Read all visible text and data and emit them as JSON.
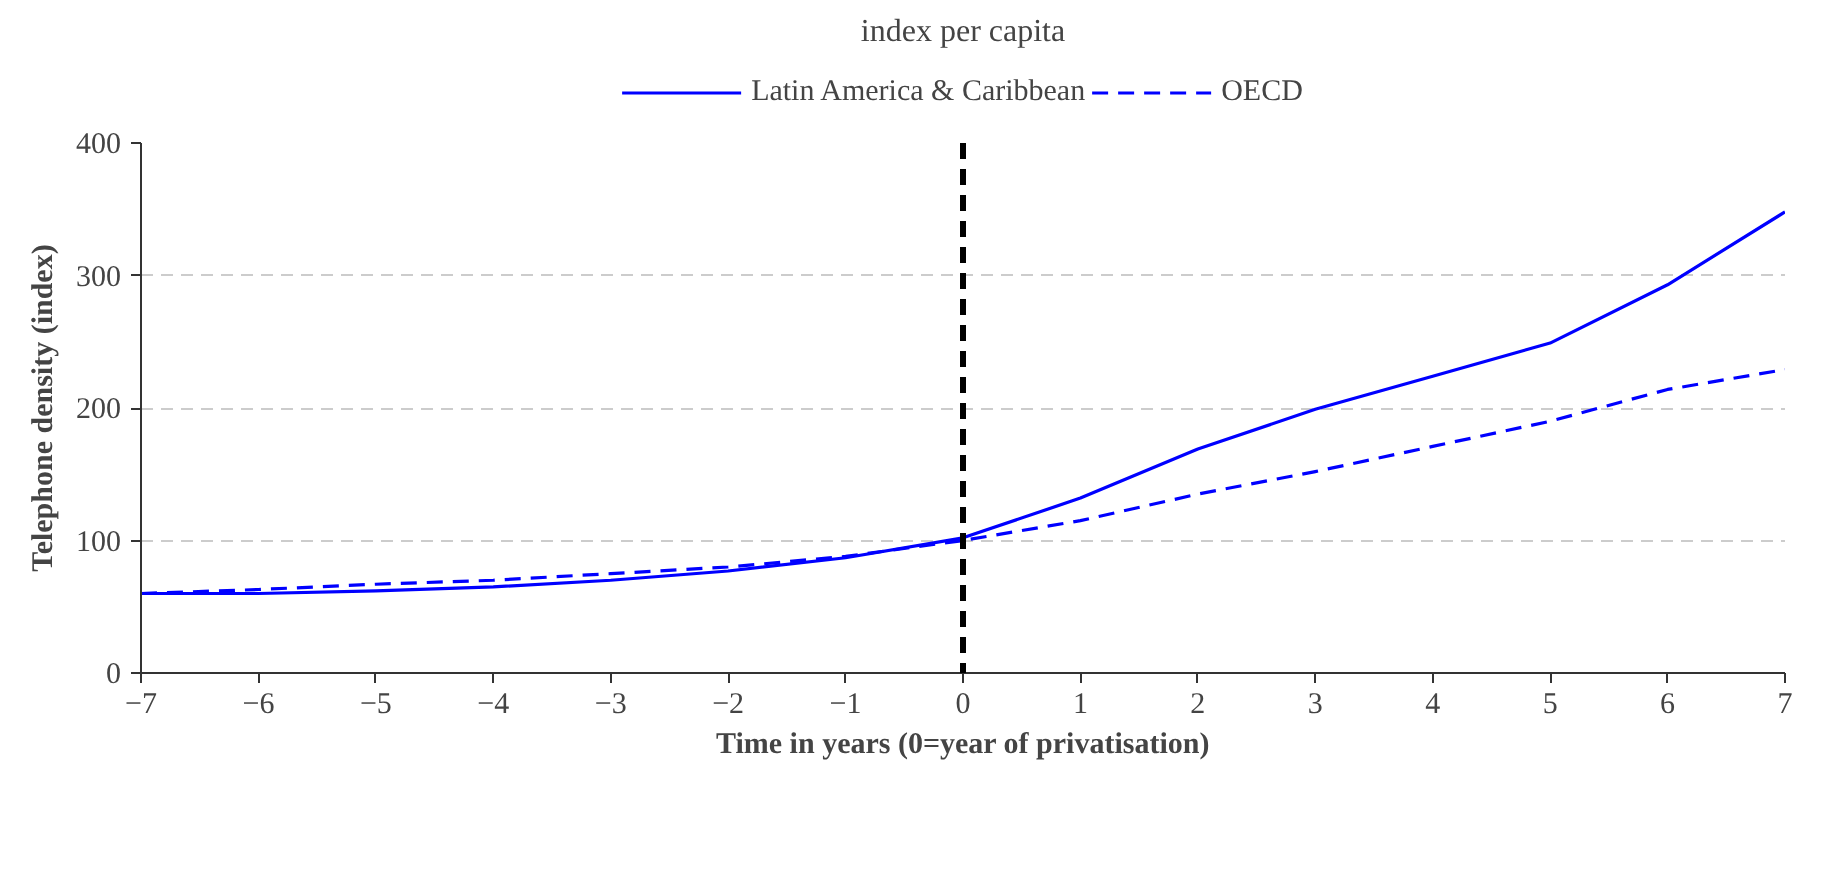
{
  "chart_data": {
    "type": "line",
    "title": "index per capita",
    "xlabel": "Time in years (0=year of privatisation)",
    "ylabel": "Telephone density (index)",
    "x": [
      -7,
      -6,
      -5,
      -4,
      -3,
      -2,
      -1,
      0,
      1,
      2,
      3,
      4,
      5,
      6,
      7
    ],
    "series": [
      {
        "name": "Latin America & Caribbean",
        "color": "#0000ff",
        "line_style": "solid",
        "values": [
          60,
          60,
          62,
          65,
          70,
          77,
          87,
          102,
          132,
          169,
          199,
          224,
          249,
          293,
          348
        ]
      },
      {
        "name": "OECD",
        "color": "#0000ff",
        "line_style": "dashed",
        "values": [
          60,
          63,
          67,
          70,
          75,
          80,
          88,
          100,
          115,
          135,
          152,
          171,
          190,
          214,
          229
        ]
      }
    ],
    "xlim": [
      -7,
      7
    ],
    "xticks": [
      -7,
      -6,
      -5,
      -4,
      -3,
      -2,
      -1,
      0,
      1,
      2,
      3,
      4,
      5,
      6,
      7
    ],
    "ylim": [
      0,
      400
    ],
    "yticks": [
      0,
      100,
      200,
      300,
      400
    ],
    "grid": "y",
    "legend": "top",
    "marker": "none",
    "ref_lines": [
      {
        "axis": "x",
        "value": 0,
        "label": null,
        "color": "#000000",
        "line_style": "dashed"
      }
    ]
  }
}
